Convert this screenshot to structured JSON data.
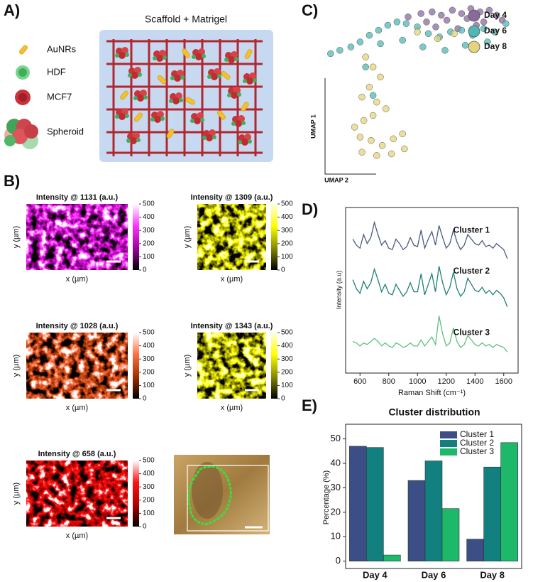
{
  "panel_labels": [
    "A)",
    "B)",
    "C)",
    "D)",
    "E)"
  ],
  "schematic": {
    "title": "Scaffold + Matrigel",
    "legend": [
      "AuNRs",
      "HDF",
      "MCF7",
      "Spheroid"
    ]
  },
  "heatmaps": [
    {
      "title": "Intensity @ 1131 (a.u.)",
      "x_label": "x (µm)",
      "y_label": "y (µm)",
      "colormap": [
        "#000000",
        "#a000a0",
        "#ff30ff",
        "#ffffff"
      ],
      "clim": [
        0,
        500
      ],
      "colorbar_ticks": [
        0,
        100,
        200,
        300,
        400,
        500
      ]
    },
    {
      "title": "Intensity @ 1309 (a.u.)",
      "x_label": "x (µm)",
      "y_label": "y (µm)",
      "colormap": [
        "#000000",
        "#8a8a00",
        "#ffff00",
        "#ffffe0"
      ],
      "clim": [
        0,
        500
      ],
      "colorbar_ticks": [
        0,
        100,
        200,
        300,
        400,
        500
      ]
    },
    {
      "title": "Intensity @ 1028 (a.u.)",
      "x_label": "x (µm)",
      "y_label": "y (µm)",
      "colormap": [
        "#000000",
        "#a03000",
        "#ff7040",
        "#ffffff"
      ],
      "clim": [
        0,
        500
      ],
      "colorbar_ticks": [
        0,
        100,
        200,
        300,
        400,
        500
      ]
    },
    {
      "title": "Intensity @ 1343 (a.u.)",
      "x_label": "x (µm)",
      "y_label": "y (µm)",
      "colormap": [
        "#000000",
        "#8a8a00",
        "#ffff00",
        "#ffffe0"
      ],
      "clim": [
        0,
        500
      ],
      "colorbar_ticks": [
        0,
        100,
        200,
        300,
        400,
        500
      ]
    },
    {
      "title": "Intensity @ 658 (a.u.)",
      "x_label": "x (µm)",
      "y_label": "y (µm)",
      "colormap": [
        "#000000",
        "#b00000",
        "#ff1010",
        "#ffffff"
      ],
      "clim": [
        0,
        500
      ],
      "colorbar_ticks": [
        0,
        100,
        200,
        300,
        400,
        500
      ]
    }
  ],
  "chart_data": [
    {
      "type": "scatter",
      "x_label": "UMAP 2",
      "y_label": "UMAP 1",
      "xlim": [
        0,
        10
      ],
      "ylim": [
        0,
        10
      ],
      "series": [
        {
          "name": "Day 4",
          "color": "#8a6a9c",
          "x": [
            4.5,
            5.2,
            5.8,
            6.3,
            6.9,
            7.4,
            7.9,
            8.4,
            8.9,
            9.3,
            5.5,
            6.6,
            7.7,
            8.6,
            9.6,
            6.0,
            7.2,
            8.2
          ],
          "values": [
            9.2,
            9.4,
            9.5,
            9.3,
            9.6,
            9.4,
            9.7,
            9.5,
            9.6,
            9.3,
            8.9,
            9.0,
            9.1,
            8.9,
            9.0,
            8.6,
            8.5,
            8.7
          ]
        },
        {
          "name": "Day 6",
          "color": "#4fb8b4",
          "x": [
            0.3,
            0.8,
            1.4,
            1.9,
            2.4,
            2.9,
            3.4,
            3.9,
            4.4,
            5.0,
            5.6,
            6.2,
            6.8,
            7.4,
            8.0,
            8.6,
            9.2,
            9.8,
            3.0,
            4.2,
            5.3,
            6.5,
            7.6,
            8.8,
            2.2,
            2.6
          ],
          "values": [
            7.0,
            7.2,
            7.4,
            7.7,
            8.1,
            8.4,
            8.7,
            8.9,
            8.8,
            8.6,
            8.2,
            8.0,
            8.3,
            8.4,
            8.1,
            8.5,
            8.3,
            8.8,
            7.6,
            7.8,
            7.4,
            7.2,
            7.5,
            7.7,
            6.2,
            4.5
          ]
        },
        {
          "name": "Day 8",
          "color": "#e6d47a",
          "x": [
            2.2,
            2.6,
            3.0,
            2.4,
            2.0,
            2.8,
            3.3,
            2.6,
            2.1,
            1.6,
            1.9,
            2.5,
            3.1,
            3.7,
            4.2,
            2.0,
            2.8,
            3.6,
            4.3,
            5.0,
            6.1,
            7.0
          ],
          "values": [
            6.8,
            6.2,
            5.6,
            5.0,
            4.4,
            4.1,
            3.7,
            3.3,
            3.0,
            2.6,
            2.0,
            1.8,
            1.5,
            1.9,
            2.2,
            1.1,
            0.9,
            1.0,
            1.3,
            8.3,
            7.9,
            8.2
          ]
        }
      ]
    },
    {
      "type": "line",
      "x_label": "Raman Shift (cm⁻¹)",
      "y_label": "Intensity (a.u)",
      "x": [
        550,
        575,
        600,
        625,
        650,
        675,
        700,
        725,
        750,
        775,
        800,
        825,
        850,
        875,
        900,
        925,
        950,
        975,
        1000,
        1025,
        1050,
        1075,
        1100,
        1125,
        1150,
        1175,
        1200,
        1225,
        1250,
        1275,
        1300,
        1325,
        1350,
        1375,
        1400,
        1425,
        1450,
        1475,
        1500,
        1525,
        1550,
        1575,
        1600,
        1625
      ],
      "xlim": [
        500,
        1700
      ],
      "xticks": [
        600,
        800,
        1000,
        1200,
        1400,
        1600
      ],
      "ylim": [
        0,
        11
      ],
      "series": [
        {
          "name": "Cluster 1",
          "color": "#4a5a80",
          "values": [
            8.9,
            8.5,
            8.3,
            9.2,
            8.6,
            9.0,
            10.0,
            9.2,
            8.5,
            8.8,
            8.3,
            8.2,
            8.9,
            8.6,
            8.2,
            8.4,
            9.0,
            8.5,
            8.4,
            9.5,
            8.3,
            8.9,
            9.4,
            8.5,
            9.8,
            9.0,
            8.3,
            8.6,
            9.5,
            8.7,
            8.2,
            8.5,
            9.2,
            8.9,
            8.6,
            8.5,
            8.8,
            8.4,
            8.5,
            8.3,
            8.6,
            8.4,
            8.2,
            7.6
          ]
        },
        {
          "name": "Cluster 2",
          "color": "#1f7f78",
          "values": [
            6.2,
            5.6,
            5.3,
            6.1,
            5.6,
            6.0,
            6.9,
            6.2,
            5.4,
            5.9,
            5.3,
            5.2,
            5.9,
            5.5,
            5.1,
            5.4,
            6.0,
            5.4,
            5.4,
            6.6,
            5.2,
            5.9,
            6.6,
            5.4,
            7.1,
            6.0,
            5.2,
            5.7,
            6.7,
            5.6,
            5.1,
            5.4,
            6.3,
            5.9,
            5.5,
            5.4,
            5.7,
            5.3,
            5.5,
            5.2,
            5.5,
            5.3,
            5.0,
            4.4
          ]
        },
        {
          "name": "Cluster 3",
          "color": "#5fbf80",
          "values": [
            2.1,
            2.0,
            1.8,
            2.0,
            1.9,
            2.1,
            2.3,
            2.1,
            1.8,
            2.0,
            1.8,
            1.7,
            2.0,
            1.9,
            1.7,
            1.8,
            2.0,
            1.8,
            1.8,
            2.2,
            1.8,
            2.1,
            2.4,
            1.9,
            3.8,
            2.6,
            1.8,
            2.0,
            3.0,
            2.1,
            1.7,
            1.9,
            2.5,
            2.2,
            1.9,
            1.8,
            2.0,
            1.8,
            1.9,
            1.7,
            1.9,
            1.8,
            1.7,
            1.4
          ]
        }
      ]
    },
    {
      "type": "bar",
      "title": "Cluster distribution",
      "y_label": "Percentage (%)",
      "categories": [
        "Day 4",
        "Day 6",
        "Day 8"
      ],
      "ylim": [
        -3,
        56
      ],
      "yticks": [
        0,
        10,
        20,
        30,
        40,
        50
      ],
      "series": [
        {
          "name": "Cluster 1",
          "color": "#3b4f86",
          "values": [
            47,
            33,
            9
          ]
        },
        {
          "name": "Cluster 2",
          "color": "#12807e",
          "values": [
            46.5,
            41,
            38.5
          ]
        },
        {
          "name": "Cluster 3",
          "color": "#1db86a",
          "values": [
            2.5,
            21.5,
            48.5
          ]
        }
      ]
    }
  ]
}
